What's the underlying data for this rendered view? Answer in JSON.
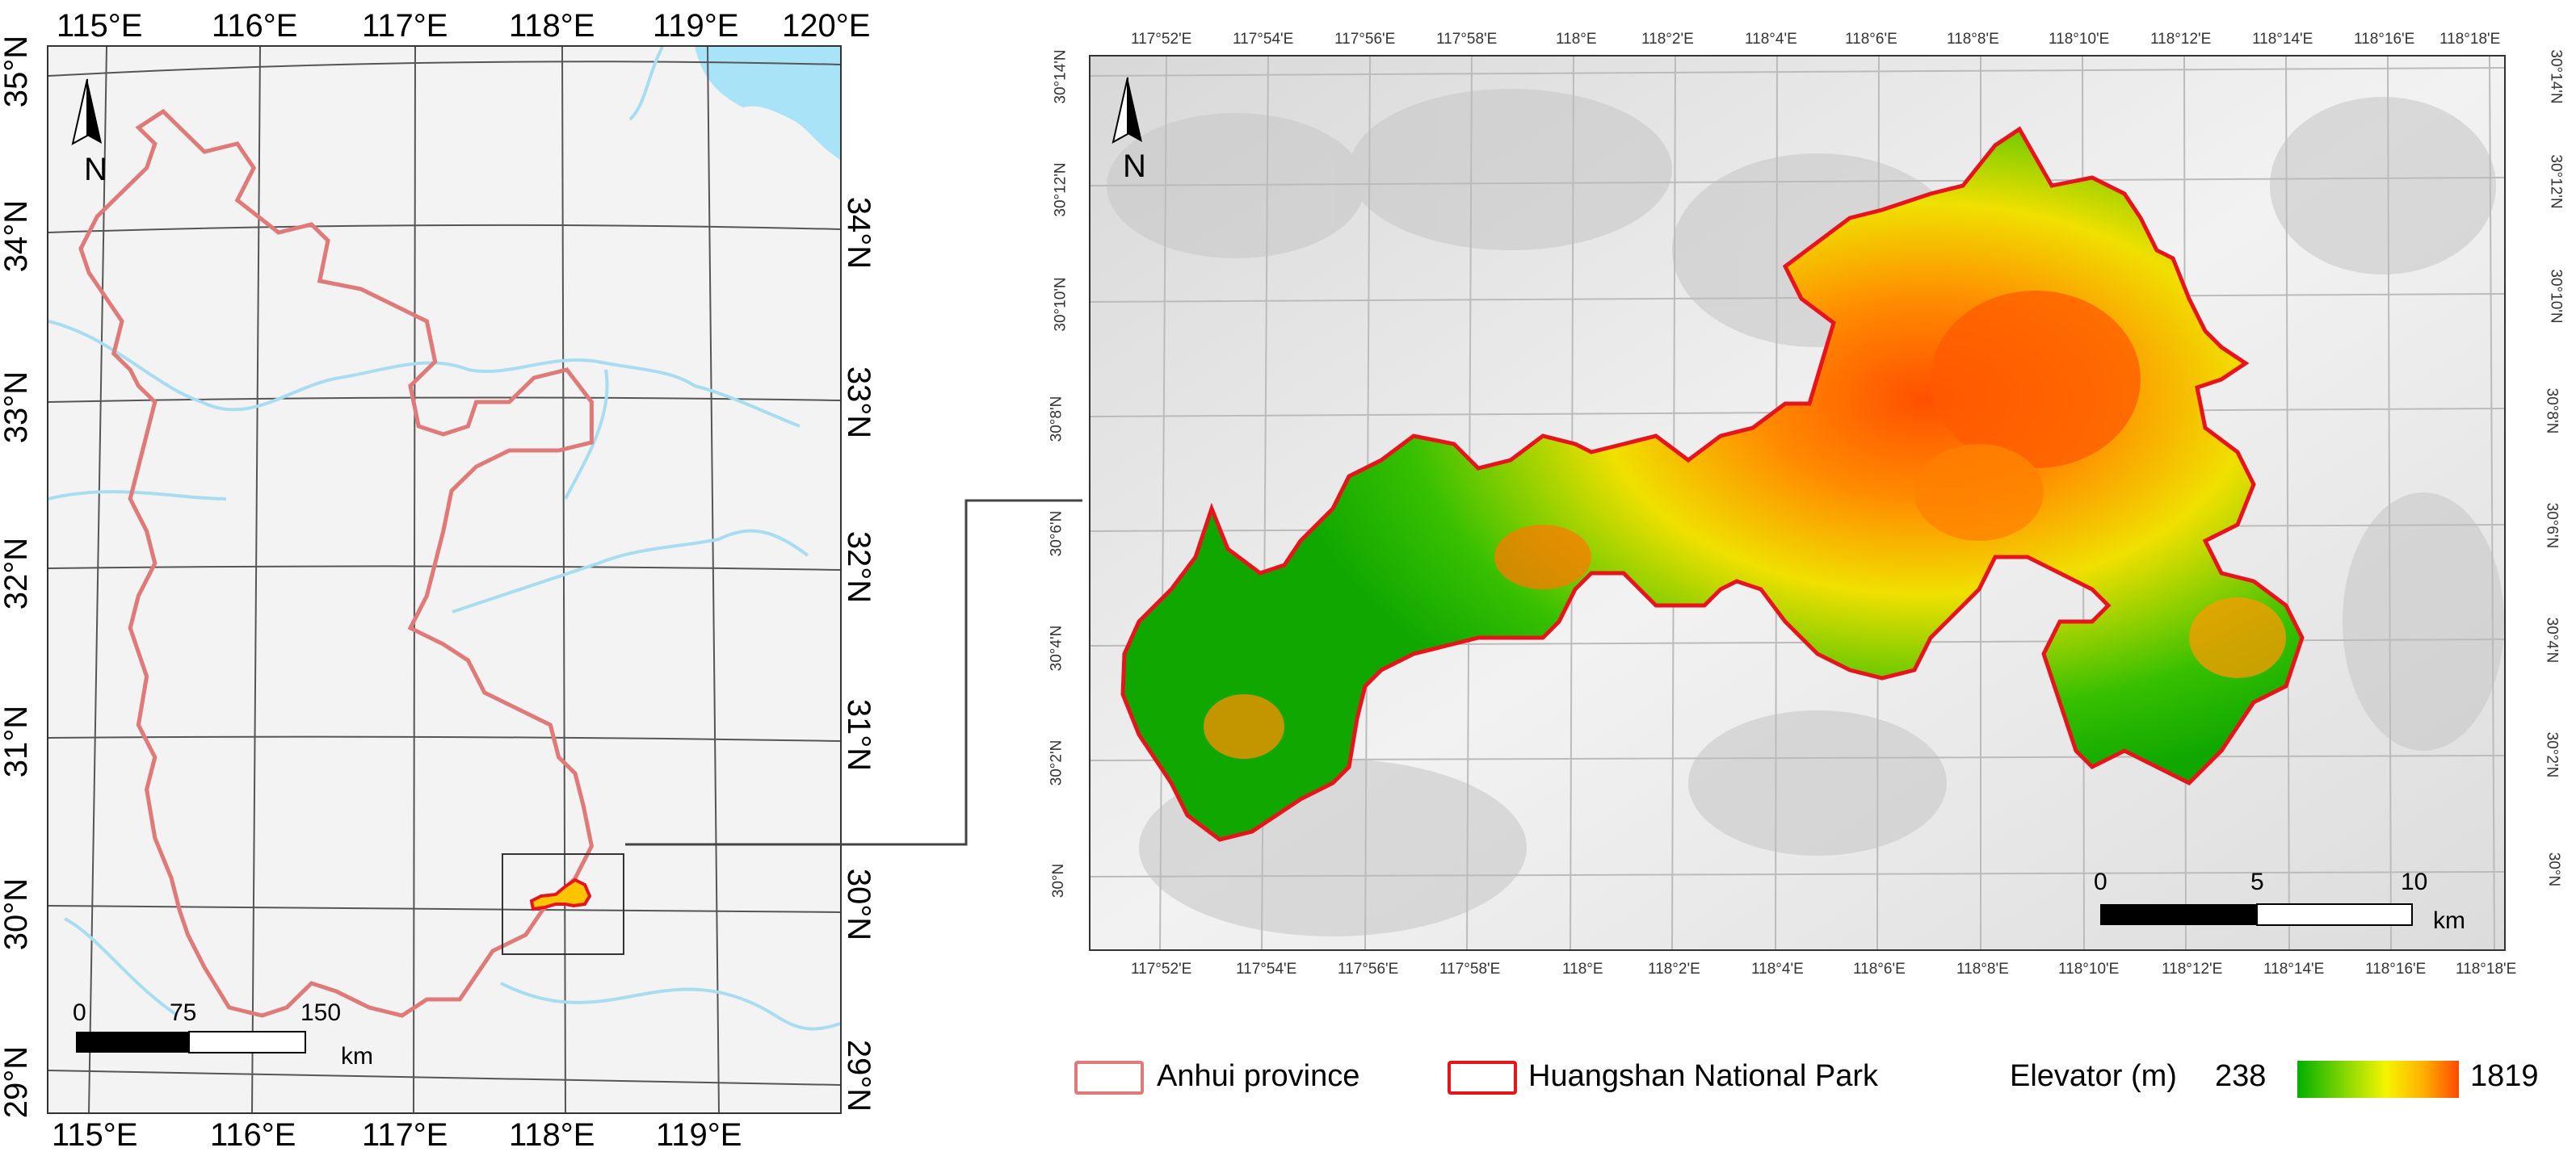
{
  "left_map": {
    "lon_labels": [
      "115°E",
      "116°E",
      "117°E",
      "118°E",
      "119°E",
      "120°E"
    ],
    "lat_labels": [
      "35°N",
      "34°N",
      "33°N",
      "32°N",
      "31°N",
      "30°N",
      "29°N"
    ],
    "north_label": "N",
    "scale": {
      "ticks": [
        "0",
        "75",
        "150"
      ],
      "unit": "km"
    }
  },
  "right_map": {
    "lon_labels": [
      "117°52'E",
      "117°54'E",
      "117°56'E",
      "117°58'E",
      "118°E",
      "118°2'E",
      "118°4'E",
      "118°6'E",
      "118°8'E",
      "118°10'E",
      "118°12'E",
      "118°14'E",
      "118°16'E",
      "118°18'E"
    ],
    "lat_labels": [
      "30°14'N",
      "30°12'N",
      "30°10'N",
      "30°8'N",
      "30°6'N",
      "30°4'N",
      "30°2'N",
      "30°N"
    ],
    "north_label": "N",
    "scale": {
      "ticks": [
        "0",
        "5",
        "10"
      ],
      "unit": "km"
    }
  },
  "legend": {
    "province_label": "Anhui province",
    "park_label": "Huangshan National Park",
    "elevation_label": "Elevator (m)",
    "elevation_min": "238",
    "elevation_max": "1819"
  },
  "colors": {
    "province_outline": "#e07a78",
    "park_outline": "#e8141c",
    "water": "#a8dcf0",
    "sea": "#a8e3f7",
    "elev_low": "#00b000",
    "elev_mid": "#f5f500",
    "elev_high": "#ff4a00"
  }
}
